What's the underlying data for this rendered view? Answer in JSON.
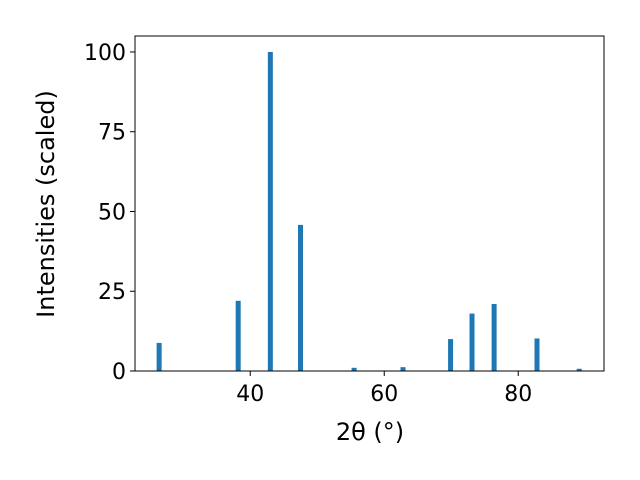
{
  "chart_data": {
    "type": "bar",
    "xlabel": "2θ (°)",
    "ylabel": "Intensities (scaled)",
    "x": [
      26.4,
      38.2,
      43.0,
      47.5,
      55.5,
      62.8,
      69.9,
      73.1,
      76.4,
      82.8,
      89.1
    ],
    "values": [
      8.8,
      22,
      100,
      45.8,
      1,
      1.2,
      10,
      18,
      21,
      10.2,
      0.7
    ],
    "color": "#1f77b4",
    "xlim": [
      22.8,
      92.8
    ],
    "xticks": [
      40,
      60,
      80
    ],
    "ylim": [
      0,
      105
    ],
    "yticks": [
      0,
      25,
      50,
      75,
      100
    ]
  }
}
